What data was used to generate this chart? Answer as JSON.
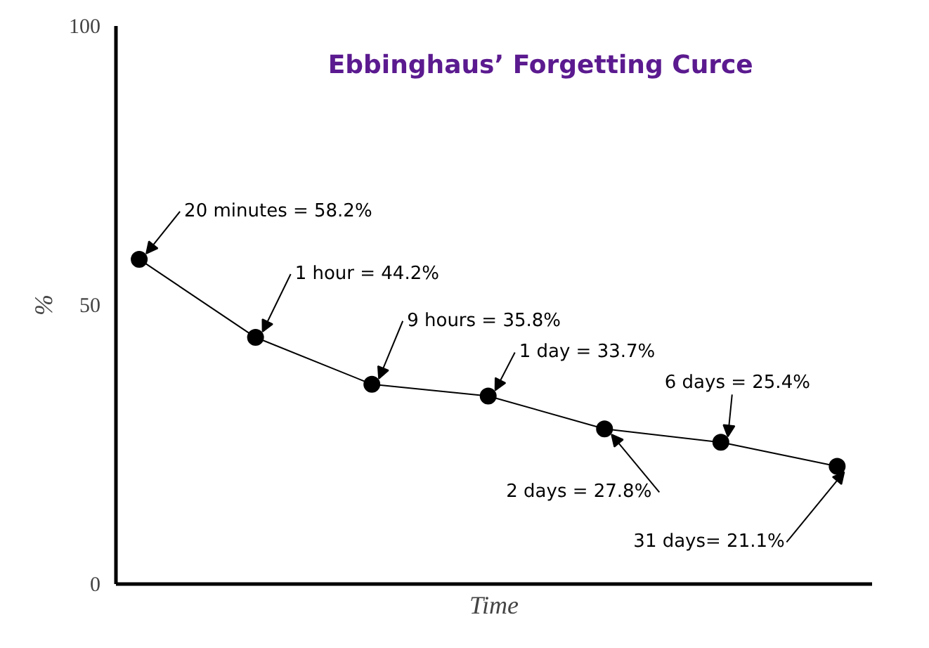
{
  "chart_data": {
    "type": "line",
    "title": "Ebbinghaus’ Forgetting Curce",
    "xlabel": "Time",
    "ylabel": "%",
    "categories": [
      null,
      null,
      null,
      null,
      null,
      null,
      null
    ],
    "values": [
      58.2,
      44.2,
      35.8,
      33.7,
      27.8,
      25.4,
      21.1
    ],
    "value_labels": [
      "20 minutes = 58.2%",
      "1 hour = 44.2%",
      "9 hours = 35.8%",
      "1 day = 33.7%",
      "2 days = 27.8%",
      "6 days = 25.4%",
      "31 days= 21.1%"
    ],
    "color": "#000000",
    "marker": "circle",
    "ylim": [
      0,
      100
    ],
    "yticks": [
      0,
      50,
      100
    ],
    "tick_labels": "y"
  }
}
